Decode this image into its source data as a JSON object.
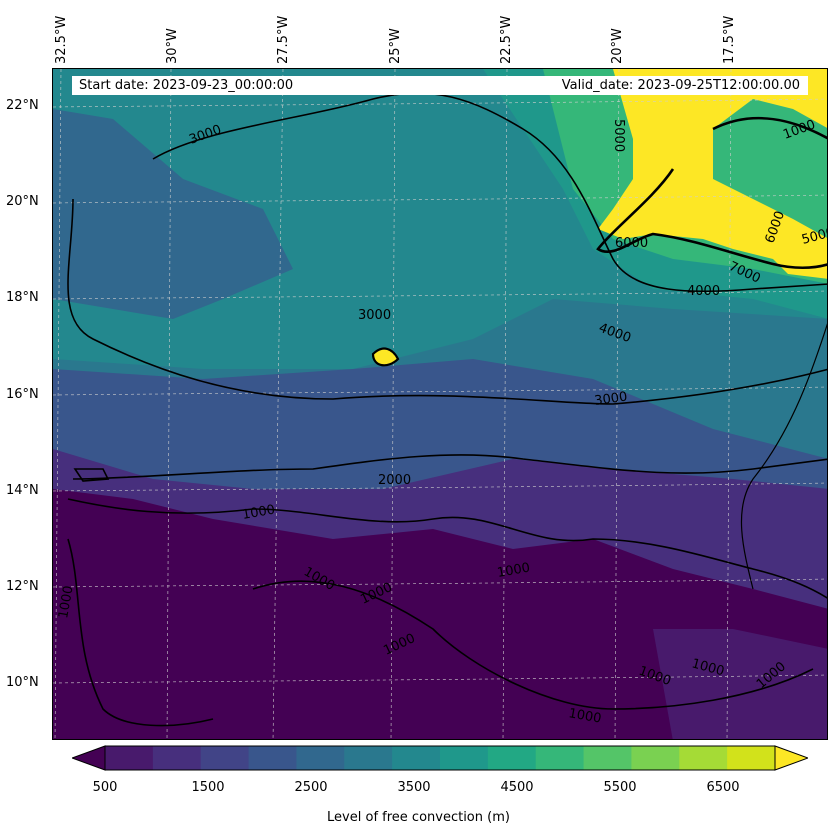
{
  "header": {
    "start_date": "Start date: 2023-09-23_00:00:00",
    "valid_date": "Valid_date: 2023-09-25T12:00:00.00"
  },
  "axes": {
    "longitude_labels": [
      "32.5°W",
      "30°W",
      "27.5°W",
      "25°W",
      "22.5°W",
      "20°W",
      "17.5°W"
    ],
    "latitude_labels": [
      "22°N",
      "20°N",
      "18°N",
      "16°N",
      "14°N",
      "12°N",
      "10°N"
    ]
  },
  "contour_labels": [
    "3000",
    "3000",
    "2000",
    "1000",
    "1000",
    "1000",
    "1000",
    "1000",
    "1000",
    "1000",
    "1000",
    "1000",
    "1000",
    "3000",
    "4000",
    "4000",
    "5000",
    "6000",
    "7000",
    "6000",
    "5000",
    "1000"
  ],
  "colorbar": {
    "tick_labels": [
      "500",
      "1500",
      "2500",
      "3500",
      "4500",
      "5500",
      "6500"
    ],
    "label": "Level of free convection (m)",
    "colors": [
      "#440154",
      "#481a6c",
      "#472f7d",
      "#414487",
      "#39568c",
      "#31688e",
      "#2a788e",
      "#23888e",
      "#1f988b",
      "#22a884",
      "#35b779",
      "#54c568",
      "#7ad151",
      "#a5db36",
      "#d2e21b",
      "#fde725"
    ]
  }
}
